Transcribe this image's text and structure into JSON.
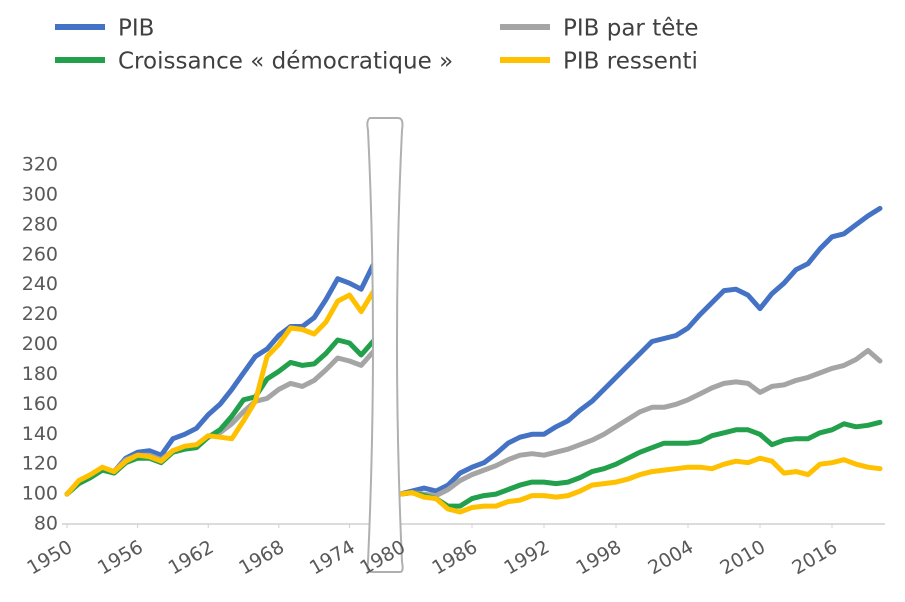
{
  "chart_data": {
    "type": "line",
    "x": [
      1950,
      1951,
      1952,
      1953,
      1954,
      1955,
      1956,
      1957,
      1958,
      1959,
      1960,
      1961,
      1962,
      1963,
      1964,
      1965,
      1966,
      1967,
      1968,
      1969,
      1970,
      1971,
      1972,
      1973,
      1974,
      1975,
      1976,
      1980,
      1981,
      1982,
      1983,
      1984,
      1985,
      1986,
      1987,
      1988,
      1989,
      1990,
      1991,
      1992,
      1993,
      1994,
      1995,
      1996,
      1997,
      1998,
      1999,
      2000,
      2001,
      2002,
      2003,
      2004,
      2005,
      2006,
      2007,
      2008,
      2009,
      2010,
      2011,
      2012,
      2013,
      2014,
      2015,
      2016,
      2017,
      2018,
      2019,
      2020
    ],
    "series": [
      {
        "name": "PIB",
        "color": "#4472c4",
        "values": [
          100,
          108,
          112,
          117,
          115,
          124,
          128,
          129,
          126,
          137,
          140,
          144,
          153,
          160,
          170,
          181,
          192,
          197,
          206,
          212,
          212,
          218,
          230,
          244,
          241,
          237,
          253,
          100,
          102,
          104,
          102,
          106,
          114,
          118,
          121,
          127,
          134,
          138,
          140,
          140,
          145,
          149,
          156,
          162,
          170,
          178,
          186,
          194,
          202,
          204,
          206,
          211,
          220,
          228,
          236,
          237,
          233,
          224,
          234,
          241,
          250,
          254,
          264,
          272,
          274,
          280,
          286,
          291
        ]
      },
      {
        "name": "Croissance « démocratique »",
        "color": "#22a04b",
        "values": [
          100,
          107,
          111,
          116,
          114,
          121,
          124,
          124,
          121,
          128,
          130,
          131,
          138,
          143,
          152,
          163,
          165,
          177,
          182,
          188,
          186,
          187,
          194,
          203,
          201,
          193,
          202,
          100,
          101,
          99,
          97,
          92,
          92,
          97,
          99,
          100,
          103,
          106,
          108,
          108,
          107,
          108,
          111,
          115,
          117,
          120,
          124,
          128,
          131,
          134,
          134,
          134,
          135,
          139,
          141,
          143,
          143,
          140,
          133,
          136,
          137,
          137,
          141,
          143,
          147,
          145,
          146,
          148
        ]
      },
      {
        "name": "PIB par tête",
        "color": "#a5a5a5",
        "values": [
          100,
          108,
          112,
          117,
          115,
          123,
          126,
          126,
          123,
          129,
          131,
          133,
          138,
          141,
          147,
          155,
          162,
          164,
          170,
          174,
          172,
          176,
          183,
          191,
          189,
          186,
          195,
          100,
          101,
          100,
          99,
          103,
          109,
          113,
          116,
          119,
          123,
          126,
          127,
          126,
          128,
          130,
          133,
          136,
          140,
          145,
          150,
          155,
          158,
          158,
          160,
          163,
          167,
          171,
          174,
          175,
          174,
          168,
          172,
          173,
          176,
          178,
          181,
          184,
          186,
          190,
          196,
          189
        ]
      },
      {
        "name": "PIB ressenti",
        "color": "#ffc000",
        "values": [
          100,
          109,
          113,
          118,
          115,
          122,
          126,
          125,
          122,
          129,
          132,
          133,
          139,
          138,
          137,
          149,
          162,
          192,
          200,
          211,
          210,
          207,
          215,
          229,
          233,
          222,
          235,
          100,
          101,
          98,
          97,
          90,
          88,
          91,
          92,
          92,
          95,
          96,
          99,
          99,
          98,
          99,
          102,
          106,
          107,
          108,
          110,
          113,
          115,
          116,
          117,
          118,
          118,
          117,
          120,
          122,
          121,
          124,
          122,
          114,
          115,
          113,
          120,
          121,
          123,
          120,
          118,
          117
        ]
      }
    ],
    "xlim": [
      [
        1950,
        1976
      ],
      [
        1980,
        2020
      ]
    ],
    "xticks": [
      1950,
      1956,
      1962,
      1968,
      1974,
      1980,
      1986,
      1992,
      1998,
      2004,
      2010,
      2016
    ],
    "ylim": [
      80,
      320
    ],
    "yticks": [
      80,
      100,
      120,
      140,
      160,
      180,
      200,
      220,
      240,
      260,
      280,
      300,
      320
    ],
    "grid": false
  }
}
